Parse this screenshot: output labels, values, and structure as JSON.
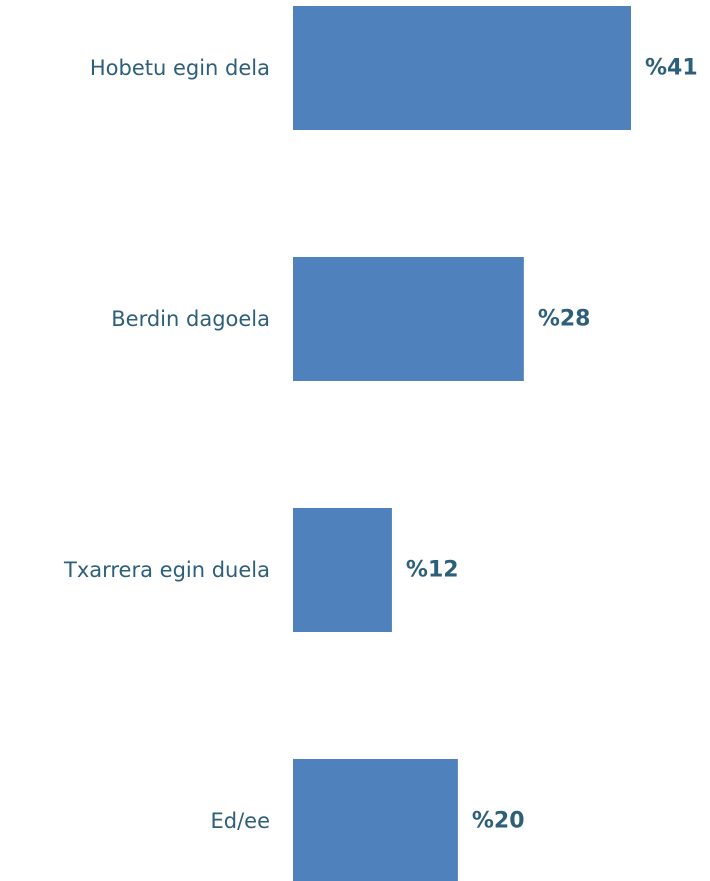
{
  "chart_data": {
    "type": "bar",
    "orientation": "horizontal",
    "categories": [
      "Hobetu egin dela",
      "Berdin dagoela",
      "Txarrera egin duela",
      "Ed/ee"
    ],
    "values": [
      41,
      28,
      12,
      20
    ],
    "value_labels": [
      "%41",
      "%28",
      "%12",
      "%20"
    ],
    "unit": "%",
    "xlim": [
      0,
      41
    ],
    "bar_color": "#4f81bd",
    "label_color": "#2e5f7a",
    "grid": false,
    "legend": "none"
  }
}
